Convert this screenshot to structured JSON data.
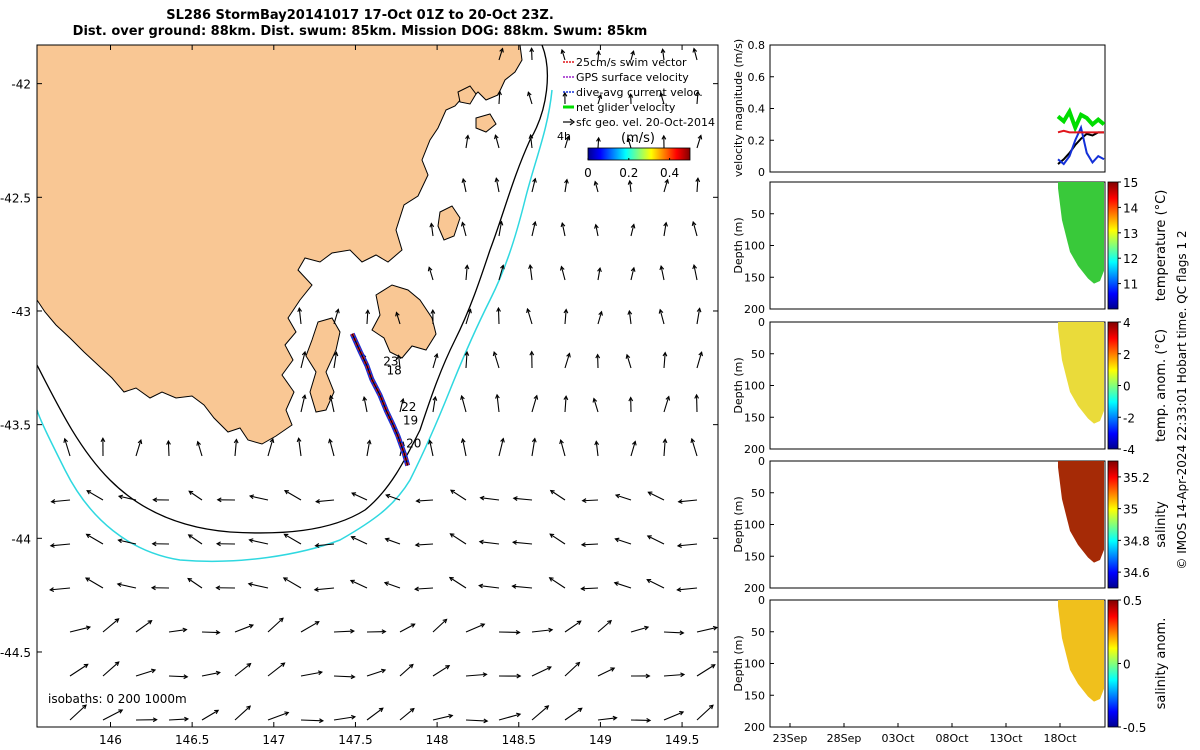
{
  "title": {
    "line1": "SL286 StormBay20141017 17-Oct 01Z to 20-Oct 23Z.",
    "line2": "Dist. over ground: 88km. Dist. swum: 85km. Mission DOG: 88km. Swum: 85km"
  },
  "colors": {
    "land": "#f9c794",
    "coast": "#000000",
    "iso200": "#000000",
    "iso1000": "#2fd8e0",
    "track_red": "#e0161c",
    "track_blue": "#1330d8",
    "green": "#00dd00",
    "arrow": "#000000"
  },
  "chart_data": [
    {
      "type": "map",
      "id": "track-map",
      "xlim": [
        145.55,
        149.72
      ],
      "ylim": [
        -44.83,
        -41.83
      ],
      "x_ticks": [
        146,
        146.5,
        147,
        147.5,
        148,
        148.5,
        149,
        149.5
      ],
      "x_tick_labels": [
        "146",
        "146.5",
        "147",
        "147.5",
        "148",
        "148.5",
        "149",
        "149.5"
      ],
      "y_ticks": [
        -42,
        -42.5,
        -43,
        -43.5,
        -44,
        -44.5
      ],
      "y_tick_labels": [
        "-42",
        "-42.5",
        "-43",
        "-43.5",
        "-44",
        "-44.5"
      ],
      "legend": {
        "position": "top-right",
        "entries": [
          {
            "label": "25cm/s swim vector",
            "color": "#e0161c",
            "marker": "arrow"
          },
          {
            "label": "GPS surface velocity",
            "color": "#9a20c8",
            "marker": "arrow"
          },
          {
            "label": "dive-avg current veloc.",
            "color": "#1330d8",
            "marker": "arrow"
          },
          {
            "label": "net glider velocity",
            "color": "#00dd00",
            "marker": "line"
          },
          {
            "label": "sfc geo. vel. 20-Oct-2014",
            "color": "#000000",
            "marker": "arrow"
          }
        ],
        "extra": "4h"
      },
      "colorbar": {
        "label": "(m/s)",
        "range": [
          0,
          0.5
        ],
        "ticks": [
          0,
          0.2,
          0.4
        ],
        "tick_labels": [
          "0",
          "0.2",
          "0.4"
        ]
      },
      "isobath_text": "isobaths: 0   200  1000m",
      "track": [
        [
          147.48,
          -43.1
        ],
        [
          147.53,
          -43.18
        ],
        [
          147.57,
          -43.24
        ],
        [
          147.6,
          -43.3
        ],
        [
          147.65,
          -43.37
        ],
        [
          147.69,
          -43.44
        ],
        [
          147.73,
          -43.5
        ],
        [
          147.76,
          -43.55
        ],
        [
          147.78,
          -43.59
        ],
        [
          147.8,
          -43.63
        ],
        [
          147.82,
          -43.68
        ]
      ],
      "track_labels": [
        {
          "text": "23",
          "lon": 147.67,
          "lat": -43.24
        },
        {
          "text": "18",
          "lon": 147.69,
          "lat": -43.28
        },
        {
          "text": "22",
          "lon": 147.78,
          "lat": -43.44
        },
        {
          "text": "19",
          "lon": 147.79,
          "lat": -43.5
        },
        {
          "text": "20",
          "lon": 147.81,
          "lat": -43.6
        }
      ]
    },
    {
      "type": "line",
      "id": "velocity-magnitude",
      "ylabel": "velocity magnitude (m/s)",
      "ylim": [
        0,
        0.8
      ],
      "y_ticks": [
        0,
        0.2,
        0.4,
        0.6,
        0.8
      ],
      "y_tick_labels": [
        "0",
        "0.2",
        "0.4",
        "0.6",
        "0.8"
      ],
      "series": [
        {
          "color": "#00dd00",
          "x": [
            "17Oct",
            "17.5Oct",
            "18Oct",
            "18.5Oct",
            "19Oct",
            "19.5Oct",
            "20Oct",
            "20.5Oct",
            "21Oct"
          ],
          "values": [
            0.35,
            0.32,
            0.38,
            0.28,
            0.36,
            0.34,
            0.3,
            0.33,
            0.3
          ]
        },
        {
          "color": "#000000",
          "x": [
            "17Oct",
            "17.5Oct",
            "18Oct",
            "18.5Oct",
            "19Oct",
            "19.5Oct",
            "20Oct",
            "20.5Oct",
            "21Oct"
          ],
          "values": [
            0.05,
            0.08,
            0.12,
            0.17,
            0.21,
            0.24,
            0.23,
            0.25,
            0.25
          ]
        },
        {
          "color": "#1330d8",
          "x": [
            "17Oct",
            "17.5Oct",
            "18Oct",
            "18.5Oct",
            "19Oct",
            "19.5Oct",
            "20Oct",
            "20.5Oct",
            "21Oct"
          ],
          "values": [
            0.08,
            0.05,
            0.1,
            0.2,
            0.28,
            0.12,
            0.06,
            0.1,
            0.08
          ]
        },
        {
          "color": "#e0161c",
          "x": [
            "17Oct",
            "17.5Oct",
            "18Oct",
            "18.5Oct",
            "19Oct",
            "19.5Oct",
            "20Oct",
            "20.5Oct",
            "21Oct"
          ],
          "values": [
            0.25,
            0.26,
            0.25,
            0.25,
            0.25,
            0.25,
            0.25,
            0.25,
            0.25
          ]
        }
      ]
    },
    {
      "type": "heatmap",
      "id": "temperature-section",
      "ylabel": "Depth (m)",
      "colorbar_label": "temperature (°C)",
      "ylim": [
        200,
        0
      ],
      "y_ticks": [
        0,
        50,
        100,
        150,
        200
      ],
      "y_tick_labels": [
        "",
        "50",
        "100",
        "150",
        "200"
      ],
      "cbar_ticks": [
        "15",
        "14",
        "13",
        "12",
        "11"
      ],
      "cbar_range": [
        10,
        15
      ],
      "fill_color": "#39c93a"
    },
    {
      "type": "heatmap",
      "id": "temperature-anomaly-section",
      "ylabel": "Depth (m)",
      "colorbar_label": "temp. anom. (°C)",
      "ylim": [
        200,
        0
      ],
      "y_ticks": [
        0,
        50,
        100,
        150,
        200
      ],
      "y_tick_labels": [
        "0",
        "50",
        "100",
        "150",
        "200"
      ],
      "cbar_ticks": [
        "4",
        "2",
        "0",
        "-2",
        "-4"
      ],
      "cbar_range": [
        -4,
        4
      ],
      "fill_color": "#eadb3a"
    },
    {
      "type": "heatmap",
      "id": "salinity-section",
      "ylabel": "Depth (m)",
      "colorbar_label": "salinity",
      "ylim": [
        200,
        0
      ],
      "y_ticks": [
        0,
        50,
        100,
        150,
        200
      ],
      "y_tick_labels": [
        "0",
        "50",
        "100",
        "150",
        "200"
      ],
      "cbar_ticks": [
        "35.2",
        "35",
        "34.8",
        "34.6"
      ],
      "cbar_range": [
        34.5,
        35.3
      ],
      "fill_color": "#a52a06"
    },
    {
      "type": "heatmap",
      "id": "salinity-anomaly-section",
      "ylabel": "Depth (m)",
      "colorbar_label": "salinity anom.",
      "ylim": [
        200,
        0
      ],
      "y_ticks": [
        0,
        50,
        100,
        150,
        200
      ],
      "y_tick_labels": [
        "0",
        "50",
        "100",
        "150",
        "200"
      ],
      "cbar_ticks": [
        "0.5",
        "0",
        "-0.5"
      ],
      "cbar_range": [
        -0.5,
        0.5
      ],
      "fill_color": "#f0c01c"
    }
  ],
  "time_axis": {
    "ticks": [
      "23Sep",
      "28Sep",
      "03Oct",
      "08Oct",
      "13Oct",
      "18Oct"
    ]
  },
  "credit": "© IMOS 14-Apr-2024 22:33:01 Hobart time. QC flags 1  2"
}
